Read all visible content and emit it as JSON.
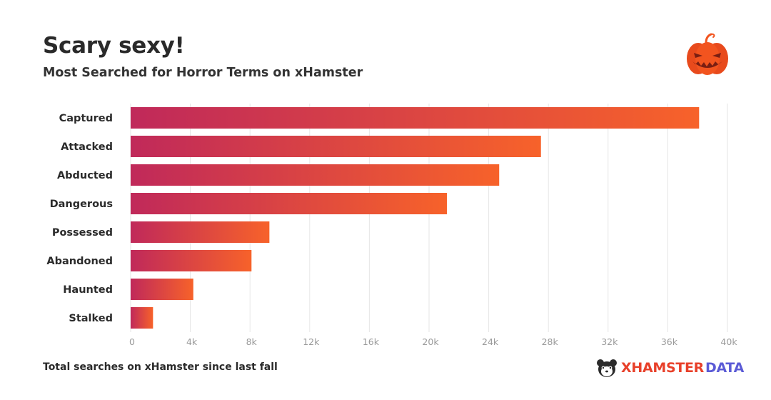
{
  "header": {
    "title": "Scary sexy!",
    "subtitle": "Most Searched for Horror Terms on xHamster",
    "icon": "pumpkin-icon"
  },
  "footer": {
    "note": "Total searches on xHamster since last fall",
    "brand_primary": "XHAMSTER",
    "brand_secondary": "DATA",
    "brand_icon": "hamster-icon"
  },
  "colors": {
    "bar_start": "#c0295a",
    "bar_end": "#f7622a",
    "grid": "#e6e6e6",
    "tick_text": "#9a9a9a",
    "brand_red": "#e8402a",
    "brand_purple": "#5b5bd6",
    "pumpkin": "#f2541f"
  },
  "chart_data": {
    "type": "bar",
    "orientation": "horizontal",
    "categories": [
      "Captured",
      "Attacked",
      "Abducted",
      "Dangerous",
      "Possessed",
      "Abandoned",
      "Haunted",
      "Stalked"
    ],
    "values": [
      38100,
      27500,
      24700,
      21200,
      9300,
      8100,
      4200,
      1500
    ],
    "xlim": [
      0,
      40000
    ],
    "xticks": [
      "0",
      "4k",
      "8k",
      "12k",
      "16k",
      "20k",
      "24k",
      "28k",
      "32k",
      "36k",
      "40k"
    ],
    "grid": true,
    "legend": "none"
  }
}
